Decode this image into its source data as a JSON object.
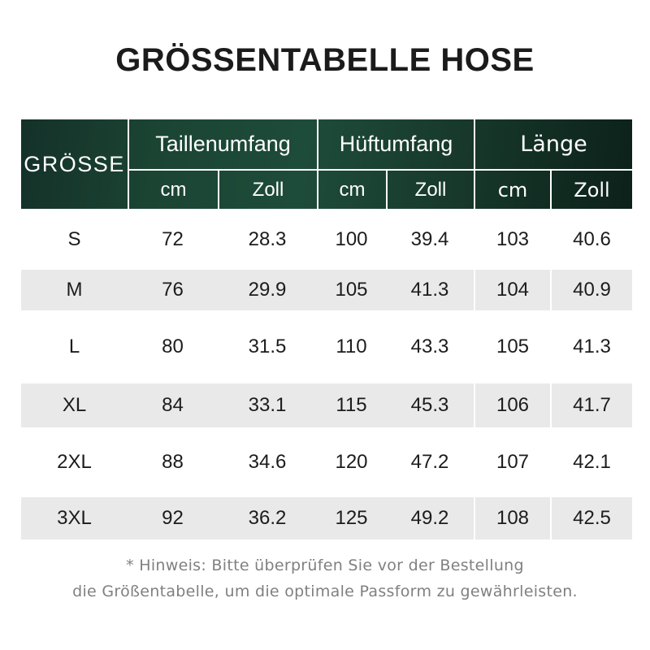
{
  "page": {
    "title": "GRÖSSENTABELLE HOSE",
    "footnote_line1": "* Hinweis: Bitte überprüfen Sie vor der Bestellung",
    "footnote_line2": "die Größentabelle, um die optimale Passform zu gewährleisten."
  },
  "chart_data": {
    "type": "table",
    "title": "GRÖSSENTABELLE HOSE",
    "row_header": "GRÖSSE",
    "column_groups": [
      {
        "label": "Taillenumfang",
        "units": [
          "cm",
          "Zoll"
        ]
      },
      {
        "label": "Hüftumfang",
        "units": [
          "cm",
          "Zoll"
        ]
      },
      {
        "label": "Länge",
        "units": [
          "cm",
          "Zoll"
        ]
      }
    ],
    "sizes": [
      "S",
      "M",
      "L",
      "XL",
      "2XL",
      "3XL"
    ],
    "rows": [
      [
        "72",
        "28.3",
        "100",
        "39.4",
        "103",
        "40.6"
      ],
      [
        "76",
        "29.9",
        "105",
        "41.3",
        "104",
        "40.9"
      ],
      [
        "80",
        "31.5",
        "110",
        "43.3",
        "105",
        "41.3"
      ],
      [
        "84",
        "33.1",
        "115",
        "45.3",
        "106",
        "41.7"
      ],
      [
        "88",
        "34.6",
        "120",
        "47.2",
        "107",
        "42.1"
      ],
      [
        "92",
        "36.2",
        "125",
        "49.2",
        "108",
        "42.5"
      ]
    ],
    "footnote": "* Hinweis: Bitte überprüfen Sie vor der Bestellung die Größentabelle, um die optimale Passform zu gewährleisten."
  },
  "colors": {
    "header_green_light": "#1e4c3a",
    "header_green_dark": "#0c211a",
    "row_stripe_gray": "#e9e9e9",
    "text_dark": "#1c1c1c",
    "title_black": "#1b1b1b",
    "footnote_gray": "#808080",
    "header_text_white": "#ffffff"
  }
}
